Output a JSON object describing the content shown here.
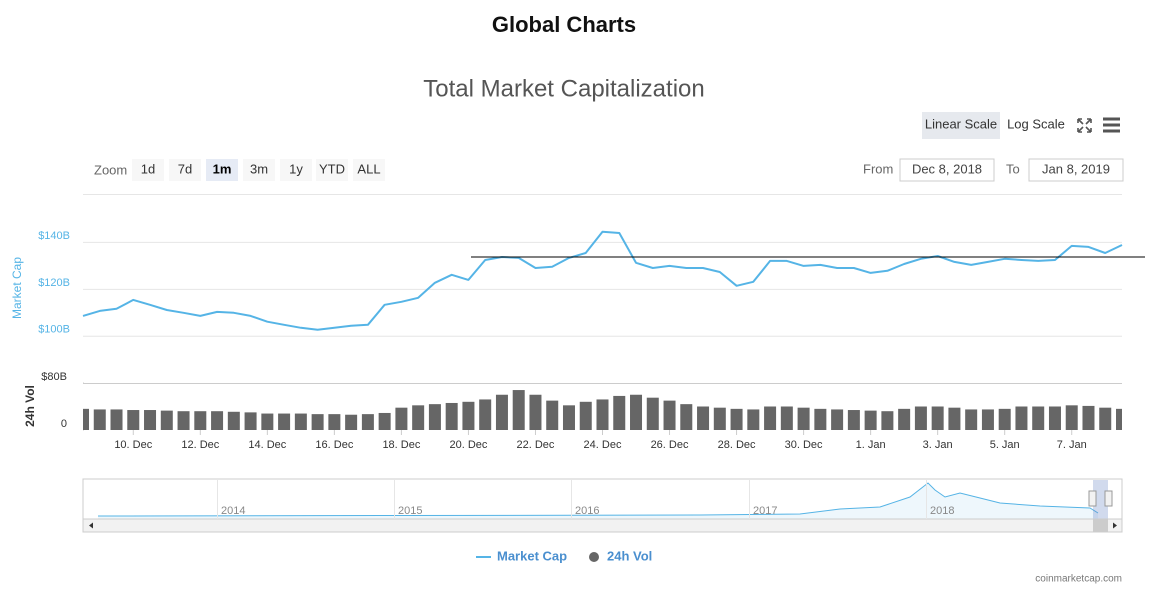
{
  "header": {
    "title": "Global Charts"
  },
  "controls": {
    "zoom_label": "Zoom",
    "zoom_buttons": [
      "1d",
      "7d",
      "1m",
      "3m",
      "1y",
      "YTD",
      "ALL"
    ],
    "zoom_selected": 2,
    "scale_buttons": [
      "Linear Scale",
      "Log Scale"
    ],
    "scale_selected": 0,
    "from_label": "From",
    "from": "Dec 8, 2018",
    "to_label": "To",
    "to": "Jan 8, 2019"
  },
  "navigator": {
    "years": [
      "2014",
      "2015",
      "2016",
      "2017",
      "2018"
    ]
  },
  "credit": "coinmarketcap.com",
  "chart_data": {
    "type": "line",
    "title": "Total Market Capitalization",
    "ylabel": "Market Cap",
    "y2label": "24h Vol",
    "categories": [
      null,
      null,
      null,
      "10. Dec",
      null,
      null,
      null,
      "12. Dec",
      null,
      null,
      null,
      "14. Dec",
      null,
      null,
      null,
      "16. Dec",
      null,
      null,
      null,
      "18. Dec",
      null,
      null,
      null,
      "20. Dec",
      null,
      null,
      null,
      "22. Dec",
      null,
      null,
      null,
      "24. Dec",
      null,
      null,
      null,
      "26. Dec",
      null,
      null,
      null,
      "28. Dec",
      null,
      null,
      null,
      "30. Dec",
      null,
      null,
      null,
      "1. Jan",
      null,
      null,
      null,
      "3. Jan",
      null,
      null,
      null,
      "5. Jan",
      null,
      null,
      null,
      "7. Jan",
      null,
      null,
      null
    ],
    "series": [
      {
        "name": "Market Cap",
        "color": "#55b4e6",
        "values": [
          108.5,
          110.6,
          111.5,
          115.3,
          113.2,
          111,
          109.8,
          108.5,
          110.2,
          109.8,
          108.5,
          106,
          104.7,
          103.4,
          102.6,
          103.4,
          104.3,
          104.7,
          113.2,
          114.5,
          116.2,
          122.6,
          126,
          123.8,
          132.3,
          133.6,
          133.2,
          128.9,
          129.4,
          133.2,
          135.3,
          144.3,
          143.8,
          131.1,
          128.9,
          129.8,
          128.9,
          128.9,
          127.2,
          121.3,
          123,
          131.9,
          131.9,
          129.8,
          130.2,
          128.9,
          128.9,
          126.8,
          127.7,
          130.6,
          132.8,
          134,
          131.5,
          130.2,
          131.5,
          132.8,
          132.3,
          131.9,
          132.3,
          138.3,
          137.9,
          135.3,
          138.7
        ]
      },
      {
        "name": "24h Vol",
        "color": "#666666",
        "axis": "y2",
        "values": [
          36,
          35,
          35,
          34,
          34,
          33,
          32,
          32,
          32,
          31,
          30,
          28,
          28,
          28,
          27,
          27,
          26,
          27,
          29,
          38,
          42,
          44,
          46,
          48,
          52,
          60,
          68,
          60,
          50,
          42,
          48,
          52,
          58,
          60,
          55,
          50,
          44,
          40,
          38,
          36,
          35,
          40,
          40,
          38,
          36,
          35,
          34,
          33,
          32,
          36,
          40,
          40,
          38,
          35,
          35,
          36,
          40,
          40,
          40,
          42,
          41,
          38,
          36
        ]
      }
    ],
    "ylim": [
      85,
      160
    ],
    "yticks": [
      {
        "value": 100,
        "label": "$100B"
      },
      {
        "value": 120,
        "label": "$120B"
      },
      {
        "value": 140,
        "label": "$140B"
      }
    ],
    "y2lim": [
      0,
      80
    ],
    "y2ticks": [
      0,
      {
        "value": 80,
        "label": "$80B"
      }
    ],
    "hline": 133.6,
    "grid": true
  }
}
